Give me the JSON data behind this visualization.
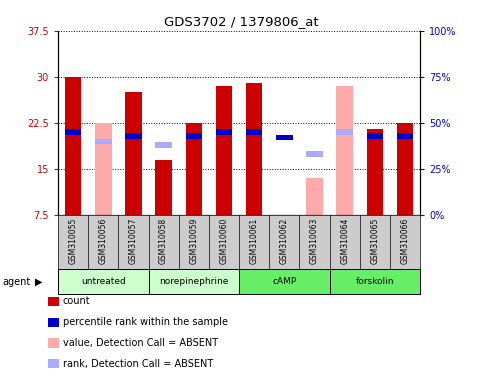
{
  "title": "GDS3702 / 1379806_at",
  "samples": [
    "GSM310055",
    "GSM310056",
    "GSM310057",
    "GSM310058",
    "GSM310059",
    "GSM310060",
    "GSM310061",
    "GSM310062",
    "GSM310063",
    "GSM310064",
    "GSM310065",
    "GSM310066"
  ],
  "count_values": [
    30.0,
    null,
    27.5,
    16.5,
    22.5,
    28.5,
    29.0,
    null,
    null,
    null,
    21.5,
    22.5
  ],
  "rank_values": [
    45.0,
    null,
    43.0,
    null,
    43.0,
    45.0,
    45.0,
    42.0,
    null,
    45.0,
    43.0,
    43.0
  ],
  "absent_value": [
    null,
    22.5,
    null,
    null,
    null,
    null,
    null,
    null,
    13.5,
    28.5,
    null,
    null
  ],
  "absent_rank": [
    null,
    40.0,
    null,
    38.0,
    null,
    null,
    null,
    null,
    33.0,
    45.0,
    null,
    null
  ],
  "ylim_left": [
    7.5,
    37.5
  ],
  "ylim_right": [
    0,
    100
  ],
  "yticks_left": [
    7.5,
    15.0,
    22.5,
    30.0,
    37.5
  ],
  "yticks_right": [
    0,
    25,
    50,
    75,
    100
  ],
  "ytick_labels_left": [
    "7.5",
    "15",
    "22.5",
    "30",
    "37.5"
  ],
  "ytick_labels_right": [
    "0%",
    "25%",
    "50%",
    "75%",
    "100%"
  ],
  "ylabel_left_color": "#cc0000",
  "ylabel_right_color": "#0000cc",
  "count_color": "#cc0000",
  "rank_color": "#0000cc",
  "absent_count_color": "#ffaaaa",
  "absent_rank_color": "#aaaaff",
  "plot_bg": "#ffffff",
  "sample_bg": "#cccccc",
  "agents_def": [
    {
      "label": "untreated",
      "light_green": "#ccffcc",
      "start": 0,
      "end": 2
    },
    {
      "label": "norepinephrine",
      "light_green": "#ccffcc",
      "start": 3,
      "end": 5
    },
    {
      "label": "cAMP",
      "light_green": "#55ee55",
      "start": 6,
      "end": 8
    },
    {
      "label": "forskolin",
      "light_green": "#55ee55",
      "start": 9,
      "end": 11
    }
  ],
  "legend_items": [
    {
      "color": "#cc0000",
      "label": "count"
    },
    {
      "color": "#0000cc",
      "label": "percentile rank within the sample"
    },
    {
      "color": "#ffaaaa",
      "label": "value, Detection Call = ABSENT"
    },
    {
      "color": "#aaaaff",
      "label": "rank, Detection Call = ABSENT"
    }
  ]
}
